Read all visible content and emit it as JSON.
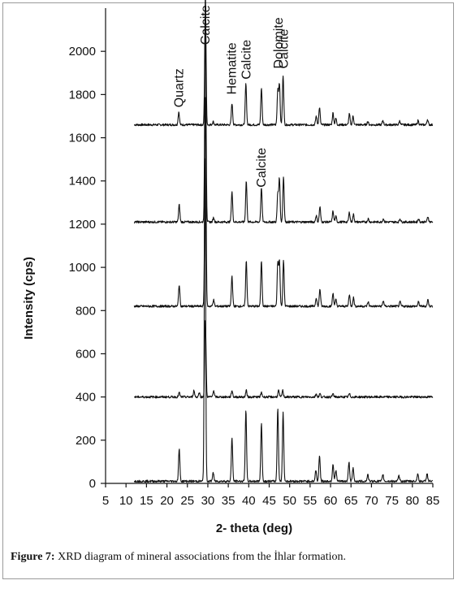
{
  "caption": {
    "label": "Figure 7:",
    "text": "XRD diagram of mineral associations from the İhlar formation."
  },
  "chart_data": {
    "type": "line",
    "title": "",
    "xlabel": "2- theta (deg)",
    "ylabel": "Intensity (cps)",
    "xlim": [
      5,
      85
    ],
    "ylim": [
      0,
      2200
    ],
    "x_ticks": [
      5,
      10,
      15,
      20,
      25,
      30,
      35,
      40,
      45,
      50,
      55,
      60,
      65,
      70,
      75,
      80,
      85
    ],
    "y_ticks": [
      0,
      200,
      400,
      600,
      800,
      1000,
      1200,
      1400,
      1600,
      1800,
      2000
    ],
    "grid": false,
    "legend": "none",
    "series": [
      {
        "baseline": 1660,
        "peaks": [
          [
            22.9,
            60
          ],
          [
            29.4,
            600
          ],
          [
            31.3,
            15
          ],
          [
            35.9,
            100
          ],
          [
            39.3,
            190
          ],
          [
            43.1,
            170
          ],
          [
            47.1,
            160
          ],
          [
            47.5,
            190
          ],
          [
            48.4,
            230
          ],
          [
            56.5,
            40
          ],
          [
            57.3,
            80
          ],
          [
            60.6,
            55
          ],
          [
            61.3,
            30
          ],
          [
            64.6,
            50
          ],
          [
            65.5,
            40
          ],
          [
            69.1,
            15
          ],
          [
            72.8,
            20
          ],
          [
            76.9,
            18
          ],
          [
            81.4,
            20
          ],
          [
            83.7,
            25
          ]
        ]
      },
      {
        "baseline": 1210,
        "peaks": [
          [
            23.0,
            80
          ],
          [
            29.4,
            950
          ],
          [
            31.4,
            20
          ],
          [
            35.9,
            140
          ],
          [
            39.4,
            190
          ],
          [
            43.1,
            160
          ],
          [
            47.1,
            130
          ],
          [
            47.5,
            200
          ],
          [
            48.5,
            210
          ],
          [
            56.5,
            30
          ],
          [
            57.4,
            70
          ],
          [
            60.6,
            50
          ],
          [
            61.3,
            25
          ],
          [
            64.6,
            45
          ],
          [
            65.6,
            35
          ],
          [
            69.2,
            15
          ],
          [
            72.9,
            15
          ],
          [
            77.0,
            15
          ],
          [
            81.5,
            15
          ],
          [
            83.8,
            25
          ]
        ]
      },
      {
        "baseline": 820,
        "peaks": [
          [
            23.0,
            100
          ],
          [
            29.4,
            1000
          ],
          [
            31.4,
            30
          ],
          [
            35.9,
            140
          ],
          [
            39.4,
            210
          ],
          [
            43.1,
            210
          ],
          [
            47.1,
            200
          ],
          [
            47.5,
            210
          ],
          [
            48.5,
            210
          ],
          [
            56.5,
            40
          ],
          [
            57.4,
            80
          ],
          [
            60.6,
            60
          ],
          [
            61.3,
            30
          ],
          [
            64.6,
            55
          ],
          [
            65.6,
            40
          ],
          [
            69.2,
            20
          ],
          [
            72.9,
            25
          ],
          [
            77.0,
            20
          ],
          [
            81.5,
            20
          ],
          [
            83.8,
            30
          ]
        ]
      },
      {
        "baseline": 400,
        "peaks": [
          [
            23.0,
            20
          ],
          [
            26.6,
            30
          ],
          [
            27.9,
            20
          ],
          [
            29.4,
            360
          ],
          [
            31.4,
            30
          ],
          [
            35.9,
            30
          ],
          [
            39.4,
            30
          ],
          [
            43.1,
            20
          ],
          [
            47.3,
            30
          ],
          [
            48.3,
            30
          ],
          [
            56.5,
            15
          ],
          [
            57.4,
            15
          ],
          [
            60.6,
            15
          ],
          [
            64.6,
            15
          ]
        ]
      },
      {
        "baseline": 10,
        "peaks": [
          [
            23.0,
            150
          ],
          [
            29.3,
            1500
          ],
          [
            31.3,
            40
          ],
          [
            35.9,
            200
          ],
          [
            39.3,
            330
          ],
          [
            43.1,
            270
          ],
          [
            47.1,
            340
          ],
          [
            48.4,
            320
          ],
          [
            56.4,
            50
          ],
          [
            57.3,
            120
          ],
          [
            60.6,
            80
          ],
          [
            61.3,
            50
          ],
          [
            64.5,
            90
          ],
          [
            65.5,
            60
          ],
          [
            69.1,
            30
          ],
          [
            72.8,
            30
          ],
          [
            76.7,
            25
          ],
          [
            81.3,
            35
          ],
          [
            83.6,
            35
          ]
        ]
      }
    ],
    "annotations": [
      {
        "text": "Quartz",
        "x": 23.0,
        "y": 1740
      },
      {
        "text": "Calcite",
        "x": 29.4,
        "y": 2030
      },
      {
        "text": "Hematite",
        "x": 35.9,
        "y": 1800
      },
      {
        "text": "Calcite",
        "x": 39.4,
        "y": 1870
      },
      {
        "text": "Dolomite",
        "x": 47.3,
        "y": 1920
      },
      {
        "text": "Calcite",
        "x": 48.6,
        "y": 1920
      },
      {
        "text": "Calcite",
        "x": 43.1,
        "y": 1370
      }
    ]
  }
}
